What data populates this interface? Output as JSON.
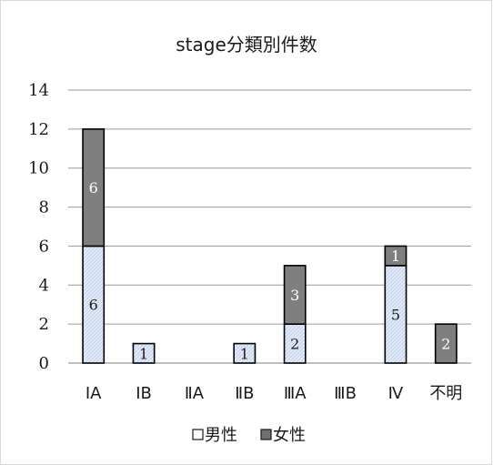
{
  "chart_data": {
    "type": "bar",
    "stacked": true,
    "title": "stage分類別件数",
    "categories": [
      "ⅠA",
      "ⅠB",
      "ⅡA",
      "ⅡB",
      "ⅢA",
      "ⅢB",
      "Ⅳ",
      "不明"
    ],
    "series": [
      {
        "name": "男性",
        "values": [
          6,
          1,
          0,
          1,
          2,
          0,
          5,
          0
        ],
        "color": "#dde8f6"
      },
      {
        "name": "女性",
        "values": [
          6,
          0,
          0,
          0,
          3,
          0,
          1,
          2
        ],
        "color": "#7f7f7f"
      }
    ],
    "ylim": [
      0,
      14
    ],
    "yticks": [
      0,
      2,
      4,
      6,
      8,
      10,
      12,
      14
    ],
    "grid": true,
    "legend": "bottom",
    "data_label_colors": {
      "男性": "#1a1a1a",
      "女性": "#ffffff"
    }
  }
}
